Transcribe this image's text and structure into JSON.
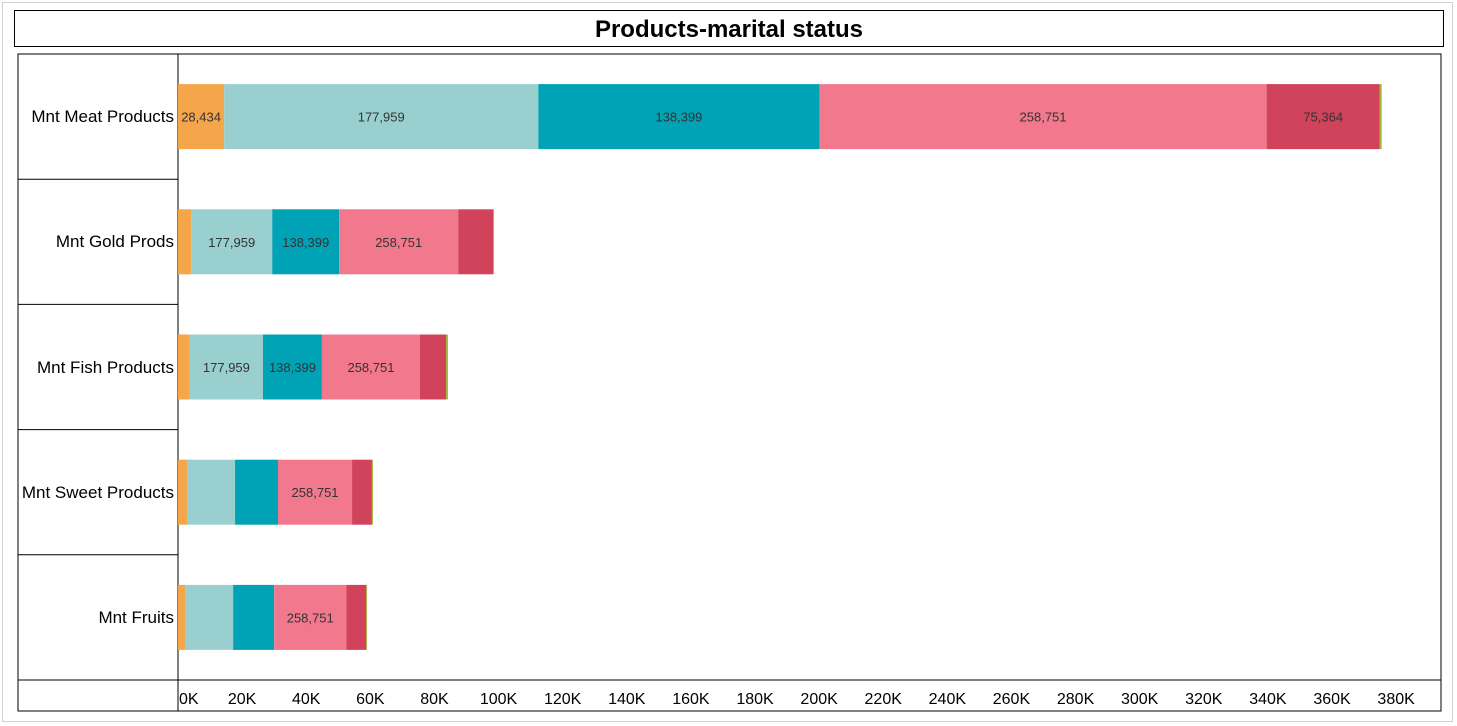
{
  "chart_data": {
    "type": "stacked-barh",
    "title": "Products-marital status",
    "categories": [
      "Mnt Meat Products",
      "Mnt Gold Prods",
      "Mnt Fish Products",
      "Mnt Sweet Products",
      "Mnt Fruits"
    ],
    "series": [
      {
        "color": "#f5a54a",
        "values": [
          14400,
          4100,
          3700,
          2800,
          2200
        ],
        "labels": [
          "28,434",
          null,
          null,
          null,
          null
        ]
      },
      {
        "color": "#9acfcf",
        "values": [
          98000,
          25300,
          22800,
          15000,
          15000
        ],
        "labels": [
          "177,959",
          "177,959",
          "177,959",
          null,
          null
        ]
      },
      {
        "color": "#00a2b5",
        "values": [
          87700,
          20900,
          18400,
          13400,
          12800
        ],
        "labels": [
          "138,399",
          "138,399",
          "138,399",
          null,
          null
        ]
      },
      {
        "color": "#f2788d",
        "values": [
          139500,
          37100,
          30600,
          23100,
          22500
        ],
        "labels": [
          "258,751",
          "258,751",
          "258,751",
          "258,751",
          "258,751"
        ]
      },
      {
        "color": "#d1435a",
        "values": [
          35300,
          10900,
          8100,
          6200,
          6200
        ],
        "labels": [
          "75,364",
          null,
          null,
          null,
          null
        ]
      },
      {
        "color": "#a6b43a",
        "values": [
          600,
          300,
          600,
          300,
          300
        ],
        "labels": [
          null,
          null,
          null,
          null,
          null
        ]
      }
    ],
    "xlim": [
      0,
      394000
    ],
    "xticks": [
      {
        "value": 0,
        "label": "0K"
      },
      {
        "value": 20000,
        "label": "20K"
      },
      {
        "value": 40000,
        "label": "40K"
      },
      {
        "value": 60000,
        "label": "60K"
      },
      {
        "value": 80000,
        "label": "80K"
      },
      {
        "value": 100000,
        "label": "100K"
      },
      {
        "value": 120000,
        "label": "120K"
      },
      {
        "value": 140000,
        "label": "140K"
      },
      {
        "value": 160000,
        "label": "160K"
      },
      {
        "value": 180000,
        "label": "180K"
      },
      {
        "value": 200000,
        "label": "200K"
      },
      {
        "value": 220000,
        "label": "220K"
      },
      {
        "value": 240000,
        "label": "240K"
      },
      {
        "value": 260000,
        "label": "260K"
      },
      {
        "value": 280000,
        "label": "280K"
      },
      {
        "value": 300000,
        "label": "300K"
      },
      {
        "value": 320000,
        "label": "320K"
      },
      {
        "value": 340000,
        "label": "340K"
      },
      {
        "value": 360000,
        "label": "360K"
      },
      {
        "value": 380000,
        "label": "380K"
      }
    ],
    "grid": false
  }
}
